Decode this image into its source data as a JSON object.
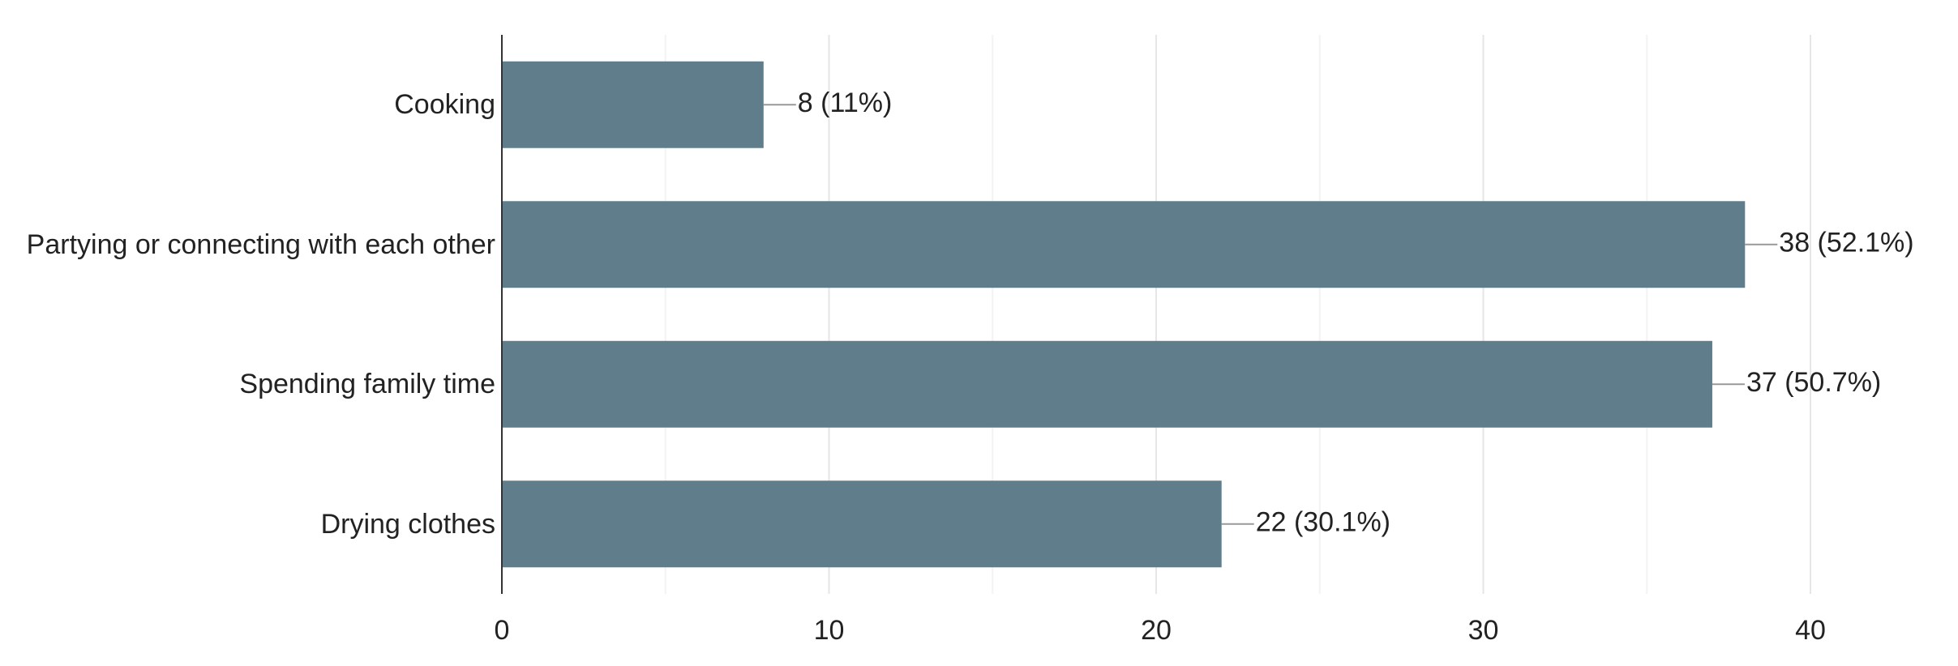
{
  "chart_data": {
    "type": "bar",
    "orientation": "horizontal",
    "categories": [
      "Cooking",
      "Partying or connecting with each other",
      "Spending family time",
      "Drying clothes"
    ],
    "values": [
      8,
      38,
      37,
      22
    ],
    "value_labels": [
      "8 (11%)",
      "38 (52.1%)",
      "37 (50.7%)",
      "22 (30.1%)"
    ],
    "color": "#607d8b",
    "xlim": [
      0,
      40
    ],
    "xticks": [
      0,
      10,
      20,
      30,
      40
    ],
    "minor_xticks": [
      5,
      15,
      25,
      35
    ],
    "grid": true
  }
}
